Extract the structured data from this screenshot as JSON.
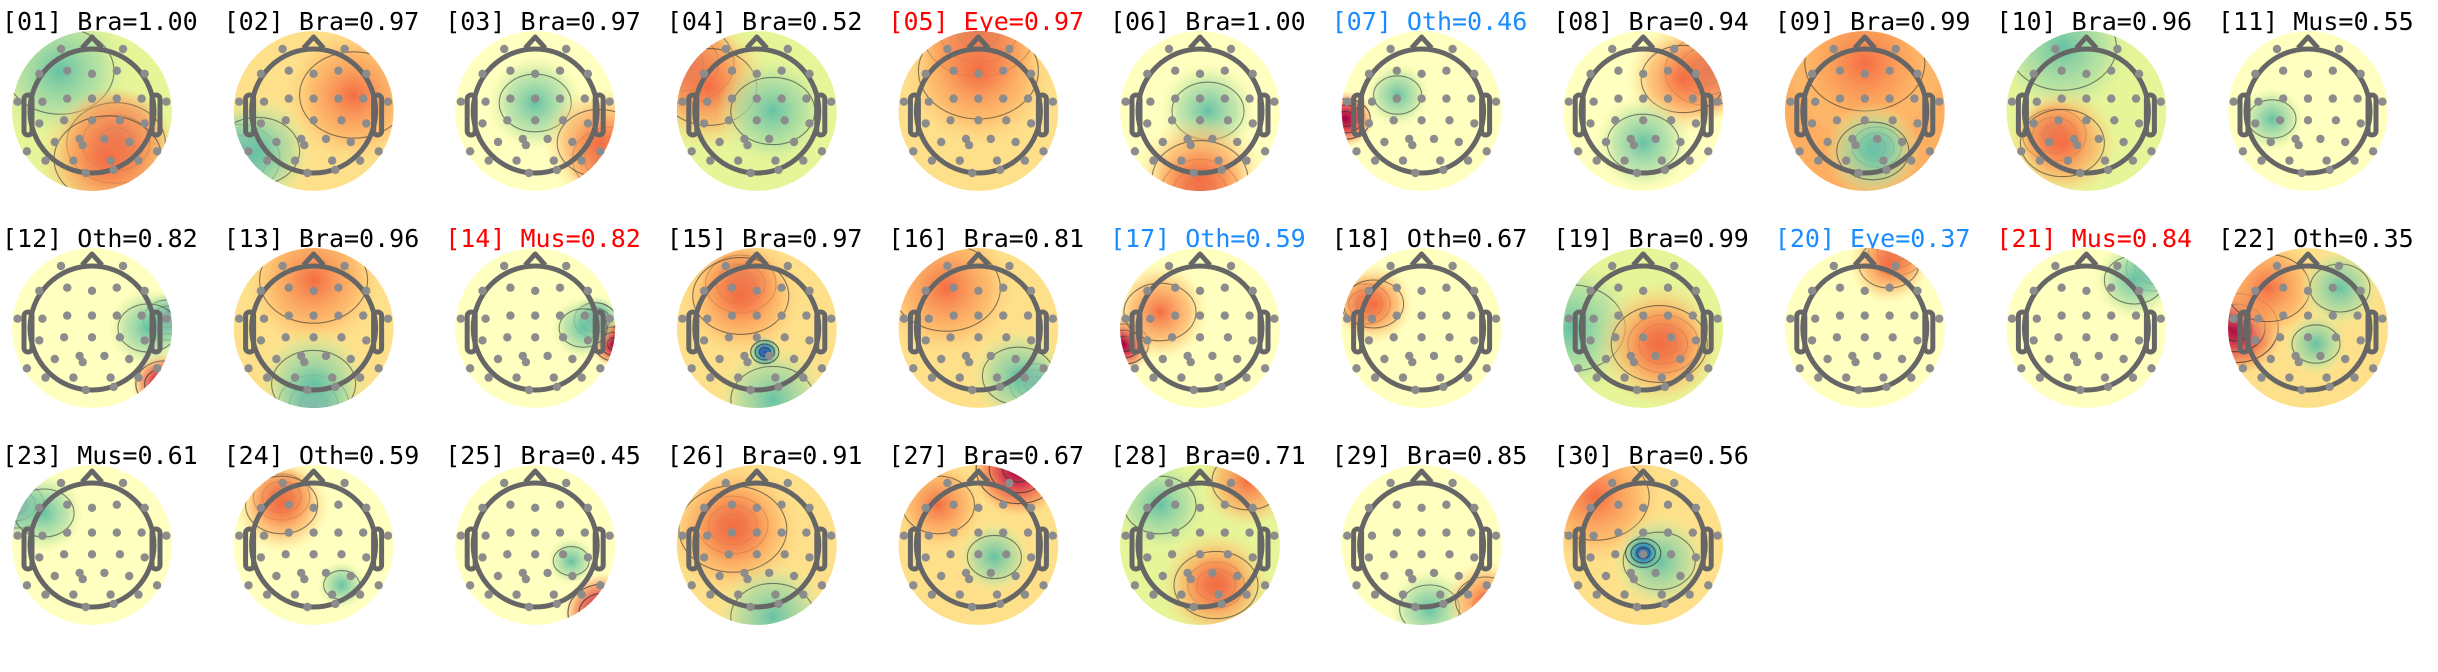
{
  "chart_data": {
    "type": "topomap-grid",
    "colormap": "Spectral (reversed): blue = negative, yellow = zero, red = positive",
    "label_colors": {
      "default": "#000000",
      "flagged": "#ff0000",
      "uncertain": "#1a8cff"
    },
    "components": [
      {
        "label": "[01] Bra=1.00",
        "class": "Bra",
        "score": 1.0,
        "status": "default"
      },
      {
        "label": "[02] Bra=0.97",
        "class": "Bra",
        "score": 0.97,
        "status": "default"
      },
      {
        "label": "[03] Bra=0.97",
        "class": "Bra",
        "score": 0.97,
        "status": "default"
      },
      {
        "label": "[04] Bra=0.52",
        "class": "Bra",
        "score": 0.52,
        "status": "default"
      },
      {
        "label": "[05] Eye=0.97",
        "class": "Eye",
        "score": 0.97,
        "status": "flagged"
      },
      {
        "label": "[06] Bra=1.00",
        "class": "Bra",
        "score": 1.0,
        "status": "default"
      },
      {
        "label": "[07] Oth=0.46",
        "class": "Oth",
        "score": 0.46,
        "status": "uncertain"
      },
      {
        "label": "[08] Bra=0.94",
        "class": "Bra",
        "score": 0.94,
        "status": "default"
      },
      {
        "label": "[09] Bra=0.99",
        "class": "Bra",
        "score": 0.99,
        "status": "default"
      },
      {
        "label": "[10] Bra=0.96",
        "class": "Bra",
        "score": 0.96,
        "status": "default"
      },
      {
        "label": "[11] Mus=0.55",
        "class": "Mus",
        "score": 0.55,
        "status": "default"
      },
      {
        "label": "[12] Oth=0.82",
        "class": "Oth",
        "score": 0.82,
        "status": "default"
      },
      {
        "label": "[13] Bra=0.96",
        "class": "Bra",
        "score": 0.96,
        "status": "default"
      },
      {
        "label": "[14] Mus=0.82",
        "class": "Mus",
        "score": 0.82,
        "status": "flagged"
      },
      {
        "label": "[15] Bra=0.97",
        "class": "Bra",
        "score": 0.97,
        "status": "default"
      },
      {
        "label": "[16] Bra=0.81",
        "class": "Bra",
        "score": 0.81,
        "status": "default"
      },
      {
        "label": "[17] Oth=0.59",
        "class": "Oth",
        "score": 0.59,
        "status": "uncertain"
      },
      {
        "label": "[18] Oth=0.67",
        "class": "Oth",
        "score": 0.67,
        "status": "default"
      },
      {
        "label": "[19] Bra=0.99",
        "class": "Bra",
        "score": 0.99,
        "status": "default"
      },
      {
        "label": "[20] Eye=0.37",
        "class": "Eye",
        "score": 0.37,
        "status": "uncertain"
      },
      {
        "label": "[21] Mus=0.84",
        "class": "Mus",
        "score": 0.84,
        "status": "flagged"
      },
      {
        "label": "[22] Oth=0.35",
        "class": "Oth",
        "score": 0.35,
        "status": "default"
      },
      {
        "label": "[23] Mus=0.61",
        "class": "Mus",
        "score": 0.61,
        "status": "default"
      },
      {
        "label": "[24] Oth=0.59",
        "class": "Oth",
        "score": 0.59,
        "status": "default"
      },
      {
        "label": "[25] Bra=0.45",
        "class": "Bra",
        "score": 0.45,
        "status": "default"
      },
      {
        "label": "[26] Bra=0.91",
        "class": "Bra",
        "score": 0.91,
        "status": "default"
      },
      {
        "label": "[27] Bra=0.67",
        "class": "Bra",
        "score": 0.67,
        "status": "default"
      },
      {
        "label": "[28] Bra=0.71",
        "class": "Bra",
        "score": 0.71,
        "status": "default"
      },
      {
        "label": "[29] Bra=0.85",
        "class": "Bra",
        "score": 0.85,
        "status": "default"
      },
      {
        "label": "[30] Bra=0.56",
        "class": "Bra",
        "score": 0.56,
        "status": "default"
      }
    ]
  }
}
